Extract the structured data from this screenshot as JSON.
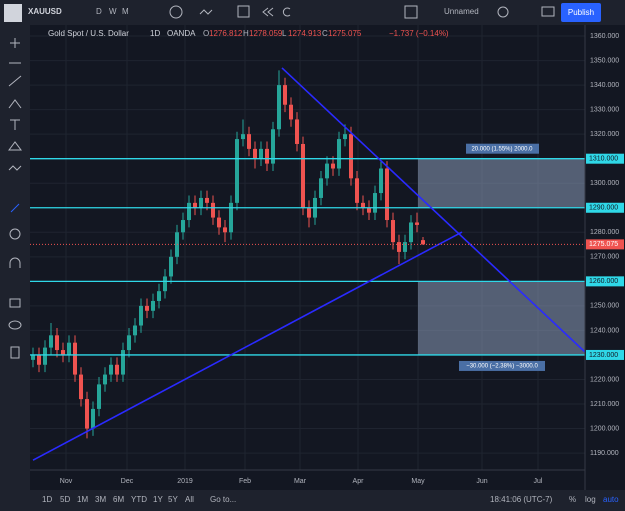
{
  "toolbar": {
    "symbol": "XAUUSD",
    "intervals": [
      "D",
      "W",
      "M"
    ],
    "layout_name": "Unnamed",
    "publish": "Publish"
  },
  "chart_data": {
    "type": "candlestick",
    "title": "Gold Spot / U.S. Dollar",
    "interval": "1D",
    "source": "OANDA",
    "ohlc_letters": [
      "O",
      "H",
      "L",
      "C"
    ],
    "ohlc_values": [
      1276.812,
      1278.059,
      1274.913,
      1275.075
    ],
    "change": "−1.737 (−0.14%)",
    "up_color": "#26a69a",
    "down_color": "#ef5350",
    "candles": [
      [
        1228,
        1233,
        1225,
        1230
      ],
      [
        1230,
        1233,
        1223,
        1226
      ],
      [
        1226,
        1236,
        1223,
        1233
      ],
      [
        1233,
        1243,
        1230,
        1238
      ],
      [
        1238,
        1241,
        1229,
        1232
      ],
      [
        1232,
        1235,
        1227,
        1230
      ],
      [
        1230,
        1238,
        1227,
        1235
      ],
      [
        1235,
        1238,
        1219,
        1222
      ],
      [
        1222,
        1225,
        1209,
        1212
      ],
      [
        1212,
        1215,
        1196,
        1200
      ],
      [
        1200,
        1211,
        1197,
        1208
      ],
      [
        1208,
        1221,
        1205,
        1218
      ],
      [
        1218,
        1225,
        1215,
        1222
      ],
      [
        1222,
        1229,
        1219,
        1226
      ],
      [
        1226,
        1229,
        1219,
        1222
      ],
      [
        1222,
        1235,
        1219,
        1232
      ],
      [
        1232,
        1241,
        1229,
        1238
      ],
      [
        1238,
        1245,
        1235,
        1242
      ],
      [
        1242,
        1253,
        1239,
        1250
      ],
      [
        1250,
        1253,
        1245,
        1248
      ],
      [
        1248,
        1255,
        1245,
        1252
      ],
      [
        1252,
        1259,
        1249,
        1256
      ],
      [
        1256,
        1265,
        1253,
        1262
      ],
      [
        1262,
        1273,
        1259,
        1270
      ],
      [
        1270,
        1283,
        1267,
        1280
      ],
      [
        1280,
        1288,
        1277,
        1285
      ],
      [
        1285,
        1295,
        1282,
        1292
      ],
      [
        1292,
        1295,
        1287,
        1290
      ],
      [
        1290,
        1297,
        1287,
        1294
      ],
      [
        1294,
        1297,
        1289,
        1292
      ],
      [
        1292,
        1295,
        1283,
        1286
      ],
      [
        1286,
        1289,
        1279,
        1282
      ],
      [
        1282,
        1285,
        1276,
        1280
      ],
      [
        1280,
        1295,
        1277,
        1292
      ],
      [
        1292,
        1321,
        1289,
        1318
      ],
      [
        1318,
        1326,
        1315,
        1320
      ],
      [
        1320,
        1323,
        1311,
        1314
      ],
      [
        1314,
        1317,
        1306,
        1310
      ],
      [
        1310,
        1317,
        1307,
        1314
      ],
      [
        1314,
        1317,
        1305,
        1308
      ],
      [
        1308,
        1325,
        1305,
        1322
      ],
      [
        1322,
        1346,
        1319,
        1340
      ],
      [
        1340,
        1343,
        1329,
        1332
      ],
      [
        1332,
        1335,
        1323,
        1326
      ],
      [
        1326,
        1329,
        1313,
        1316
      ],
      [
        1316,
        1319,
        1287,
        1290
      ],
      [
        1290,
        1293,
        1282,
        1286
      ],
      [
        1286,
        1297,
        1283,
        1294
      ],
      [
        1294,
        1305,
        1291,
        1302
      ],
      [
        1302,
        1311,
        1299,
        1308
      ],
      [
        1308,
        1311,
        1303,
        1306
      ],
      [
        1306,
        1321,
        1303,
        1318
      ],
      [
        1318,
        1324,
        1315,
        1320
      ],
      [
        1320,
        1323,
        1299,
        1302
      ],
      [
        1302,
        1305,
        1289,
        1292
      ],
      [
        1292,
        1295,
        1287,
        1290
      ],
      [
        1290,
        1293,
        1285,
        1288
      ],
      [
        1288,
        1299,
        1285,
        1296
      ],
      [
        1296,
        1309,
        1293,
        1306
      ],
      [
        1306,
        1309,
        1282,
        1285
      ],
      [
        1285,
        1288,
        1273,
        1276
      ],
      [
        1276,
        1279,
        1267,
        1272
      ],
      [
        1272,
        1279,
        1269,
        1276
      ],
      [
        1276,
        1287,
        1273,
        1284
      ],
      [
        1284,
        1288,
        1280,
        1283
      ],
      [
        1276.812,
        1278.059,
        1274.913,
        1275.075
      ]
    ],
    "ylim": [
      1183.1,
      1364.5
    ],
    "yticks": [
      {
        "value": 1360,
        "label": "1360.000"
      },
      {
        "value": 1350,
        "label": "1350.000"
      },
      {
        "value": 1340,
        "label": "1340.000"
      },
      {
        "value": 1330,
        "label": "1330.000"
      },
      {
        "value": 1320,
        "label": "1320.000"
      },
      {
        "value": 1300,
        "label": "1300.000"
      },
      {
        "value": 1280,
        "label": "1280.000"
      },
      {
        "value": 1270,
        "label": "1270.000"
      },
      {
        "value": 1250,
        "label": "1250.000"
      },
      {
        "value": 1240,
        "label": "1240.000"
      },
      {
        "value": 1220,
        "label": "1220.000"
      },
      {
        "value": 1210,
        "label": "1210.000"
      },
      {
        "value": 1200,
        "label": "1200.000"
      },
      {
        "value": 1190,
        "label": "1190.000"
      }
    ],
    "levels": [
      {
        "value": 1310,
        "label": "1310.000"
      },
      {
        "value": 1290,
        "label": "1290.000"
      },
      {
        "value": 1260,
        "label": "1260.000"
      },
      {
        "value": 1230,
        "label": "1230.000"
      }
    ],
    "level_color": "#2fd8e8",
    "last_price": {
      "value": 1275.075,
      "label": "1275.075"
    },
    "trendlines": [
      {
        "color": "#2a2aff",
        "values": [
          1347,
          1231.2
        ]
      },
      {
        "color": "#2a2aff",
        "values": [
          1187.1,
          1280.1
        ]
      }
    ],
    "measures": [
      {
        "values": [
          1310,
          1290
        ],
        "label": "20.000 (1.55%) 2000.0"
      },
      {
        "values": [
          1260,
          1230
        ],
        "label": "−30.000 (−2.38%) −3000.0"
      }
    ],
    "time_labels": [
      "Nov",
      "Dec",
      "2019",
      "Feb",
      "Mar",
      "Apr",
      "May",
      "Jun",
      "Jul"
    ],
    "grid": true
  },
  "bottom_bar": {
    "ranges": [
      "1D",
      "5D",
      "1M",
      "3M",
      "6M",
      "YTD",
      "1Y",
      "5Y",
      "All"
    ],
    "goto": "Go to...",
    "clock": "18:41:06 (UTC-7)",
    "toggles": [
      "%",
      "log",
      "auto"
    ]
  }
}
